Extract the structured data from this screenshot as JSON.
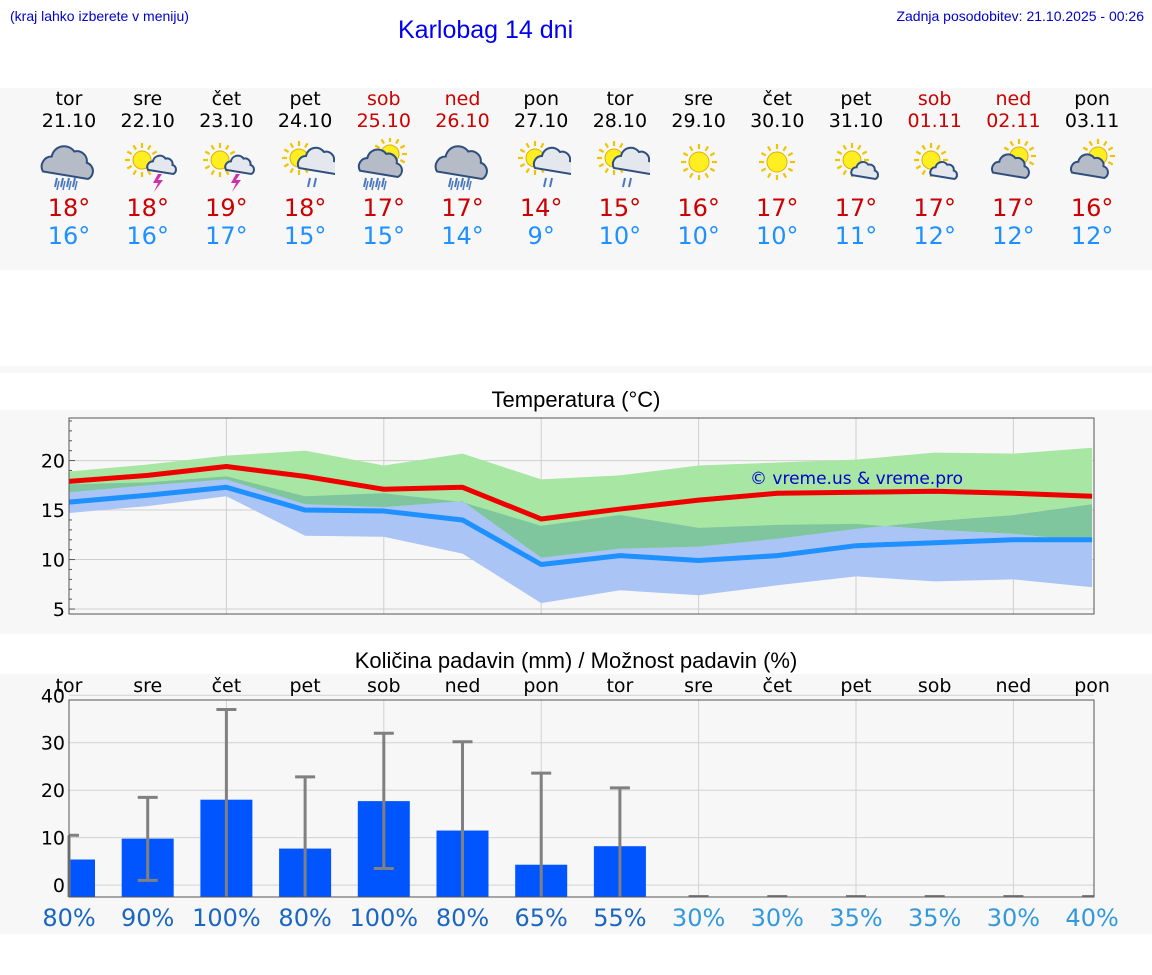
{
  "header": {
    "note": "(kraj lahko izberete v meniju)",
    "title": "Karlobag 14 dni",
    "updated": "Zadnja posodobitev: 21.10.2025 - 00:26"
  },
  "days": [
    {
      "name": "tor",
      "date": "21.10",
      "weekend": false,
      "icon": "cloud-rain-icon",
      "tmax": "18°",
      "tmin": "16°"
    },
    {
      "name": "sre",
      "date": "22.10",
      "weekend": false,
      "icon": "sun-thunder-icon",
      "tmax": "18°",
      "tmin": "16°"
    },
    {
      "name": "čet",
      "date": "23.10",
      "weekend": false,
      "icon": "sun-thunder-icon",
      "tmax": "19°",
      "tmin": "17°"
    },
    {
      "name": "pet",
      "date": "24.10",
      "weekend": false,
      "icon": "sun-cloud-rain-icon",
      "tmax": "18°",
      "tmin": "15°"
    },
    {
      "name": "sob",
      "date": "25.10",
      "weekend": true,
      "icon": "sun-cloud-heavy-rain-icon",
      "tmax": "17°",
      "tmin": "15°"
    },
    {
      "name": "ned",
      "date": "26.10",
      "weekend": true,
      "icon": "cloud-rain-icon",
      "tmax": "17°",
      "tmin": "14°"
    },
    {
      "name": "pon",
      "date": "27.10",
      "weekend": false,
      "icon": "sun-cloud-rain-icon",
      "tmax": "14°",
      "tmin": "9°"
    },
    {
      "name": "tor",
      "date": "28.10",
      "weekend": false,
      "icon": "sun-cloud-rain-icon",
      "tmax": "15°",
      "tmin": "10°"
    },
    {
      "name": "sre",
      "date": "29.10",
      "weekend": false,
      "icon": "sun-icon",
      "tmax": "16°",
      "tmin": "10°"
    },
    {
      "name": "čet",
      "date": "30.10",
      "weekend": false,
      "icon": "sun-icon",
      "tmax": "17°",
      "tmin": "10°"
    },
    {
      "name": "pet",
      "date": "31.10",
      "weekend": false,
      "icon": "sun-small-cloud-icon",
      "tmax": "17°",
      "tmin": "11°"
    },
    {
      "name": "sob",
      "date": "01.11",
      "weekend": true,
      "icon": "sun-small-cloud-icon",
      "tmax": "17°",
      "tmin": "12°"
    },
    {
      "name": "ned",
      "date": "02.11",
      "weekend": true,
      "icon": "cloud-sun-icon",
      "tmax": "17°",
      "tmin": "12°"
    },
    {
      "name": "pon",
      "date": "03.11",
      "weekend": false,
      "icon": "cloud-sun-icon",
      "tmax": "16°",
      "tmin": "12°"
    }
  ],
  "colors": {
    "max": "#ee0000",
    "min": "#1e90ff",
    "max_band": "#a8e6a3",
    "min_band": "#a9c4f5",
    "overlap": "#7fc69f",
    "bar": "#0055ff",
    "whisker": "#808080",
    "pct_dark": "#1a66c2",
    "pct_light": "#3399dd"
  },
  "chart_data": [
    {
      "type": "line",
      "title": "Temperatura (°C)",
      "ylim": [
        4.5,
        24.3
      ],
      "yticks": [
        5,
        10,
        15,
        20
      ],
      "x": [
        "21.10",
        "22.10",
        "23.10",
        "24.10",
        "25.10",
        "26.10",
        "27.10",
        "28.10",
        "29.10",
        "30.10",
        "31.10",
        "01.11",
        "02.11",
        "03.11"
      ],
      "watermark": "© vreme.us & vreme.pro",
      "series": [
        {
          "name": "max",
          "values": [
            17.9,
            18.5,
            19.4,
            18.4,
            17.1,
            17.3,
            14.1,
            15.1,
            16.0,
            16.7,
            16.8,
            16.9,
            16.7,
            16.4
          ]
        },
        {
          "name": "min",
          "values": [
            15.8,
            16.5,
            17.3,
            15.0,
            14.9,
            14.0,
            9.5,
            10.4,
            9.9,
            10.4,
            11.4,
            11.7,
            12.0,
            12.0
          ]
        }
      ],
      "bands": [
        {
          "name": "max_range",
          "upper": [
            18.9,
            19.6,
            20.5,
            21.0,
            19.5,
            20.7,
            18.1,
            18.5,
            19.5,
            19.8,
            20.1,
            20.8,
            20.7,
            21.3
          ],
          "lower": [
            16.8,
            17.5,
            18.1,
            15.6,
            15.3,
            15.9,
            10.2,
            11.1,
            11.3,
            12.1,
            13.1,
            13.9,
            14.5,
            15.6
          ]
        },
        {
          "name": "min_range",
          "upper": [
            17.6,
            17.8,
            18.4,
            16.4,
            16.7,
            15.8,
            13.4,
            14.5,
            13.2,
            13.5,
            13.6,
            13.0,
            12.6,
            11.8
          ]
        },
        {
          "name": "min_range_lower",
          "lower": [
            14.7,
            15.4,
            16.4,
            12.4,
            12.3,
            10.6,
            5.6,
            6.9,
            6.4,
            7.4,
            8.3,
            7.8,
            8.0,
            7.2
          ]
        }
      ]
    },
    {
      "type": "bar",
      "title": "Količina padavin (mm) / Možnost padavin (%)",
      "ylim": [
        -2.5,
        39
      ],
      "yticks": [
        0,
        10,
        20,
        30,
        40
      ],
      "categories": [
        "tor",
        "sre",
        "čet",
        "pet",
        "sob",
        "ned",
        "pon",
        "tor",
        "sre",
        "čet",
        "pet",
        "sob",
        "ned",
        "pon"
      ],
      "values": [
        5.4,
        9.8,
        18.0,
        7.7,
        17.7,
        11.5,
        4.3,
        8.2,
        0,
        0,
        0,
        0,
        0,
        0
      ],
      "whisker_low": [
        0,
        1.0,
        0,
        0,
        3.5,
        0,
        0,
        0,
        0,
        0,
        0,
        0,
        0,
        0
      ],
      "whisker_high": [
        10.5,
        18.5,
        37.0,
        22.8,
        32.0,
        30.2,
        23.6,
        20.5,
        0,
        0,
        0,
        0,
        0,
        0
      ],
      "probability": [
        "80%",
        "90%",
        "100%",
        "80%",
        "100%",
        "80%",
        "65%",
        "55%",
        "30%",
        "30%",
        "35%",
        "35%",
        "30%",
        "40%"
      ]
    }
  ]
}
